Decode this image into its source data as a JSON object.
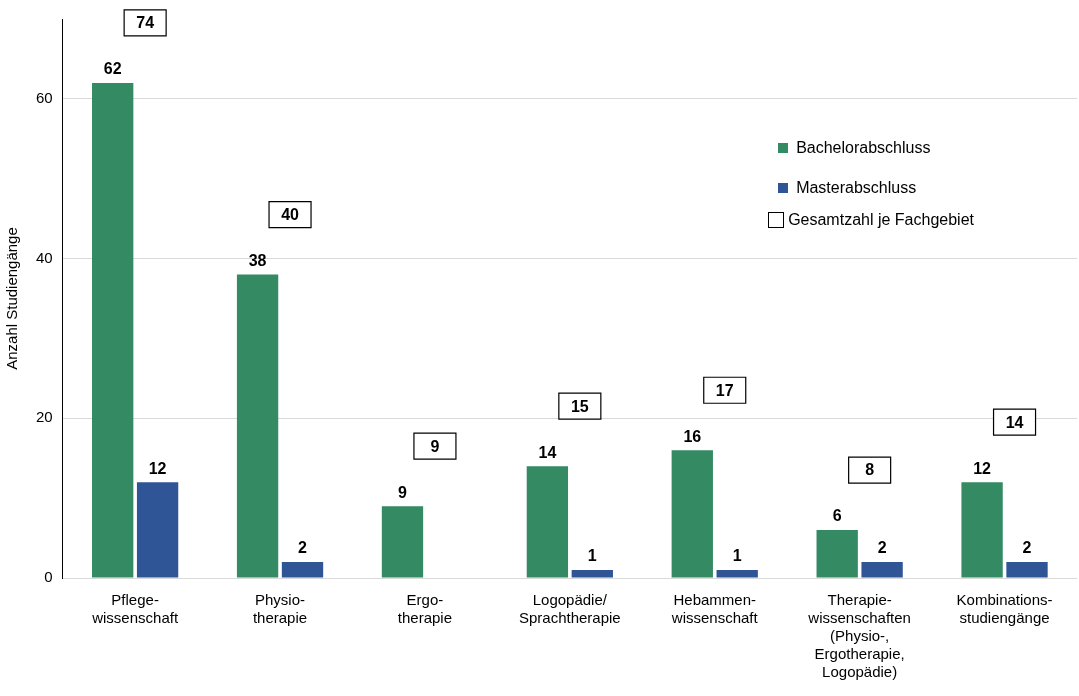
{
  "chart_data": {
    "type": "bar",
    "ylabel": "Anzahl Studiengänge",
    "categories": [
      "Pflege-\nwissenschaft",
      "Physio-\ntherapie",
      "Ergo-\ntherapie",
      "Logopädie/\nSprachtherapie",
      "Hebammen-\nwissenschaft",
      "Therapie-\nwissenschaften\n(Physio-,\nErgotherapie,\nLogopädie)",
      "Kombinations-\nstudiengänge"
    ],
    "series": [
      {
        "name": "Bachelorabschluss",
        "color": "#338a63",
        "values": [
          62,
          38,
          9,
          14,
          16,
          6,
          12
        ]
      },
      {
        "name": "Masterabschluss",
        "color": "#2f5597",
        "values": [
          12,
          2,
          null,
          1,
          1,
          2,
          2
        ]
      }
    ],
    "annotations": [
      "Gesamtzahl je Fachgebiet",
      "74",
      "40",
      "9",
      "15",
      "17",
      "8",
      "14"
    ],
    "ylim": [
      0,
      70
    ],
    "yticks": [
      0,
      20,
      40,
      60
    ],
    "grid": "y",
    "legend": "top right",
    "data_labels": true
  }
}
